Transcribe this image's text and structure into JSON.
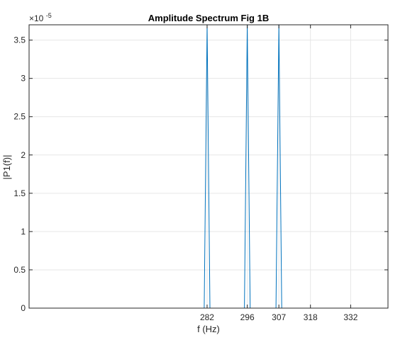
{
  "chart_data": {
    "type": "line",
    "title": "Amplitude Spectrum Fig 1B",
    "xlabel": "f (Hz)",
    "ylabel": "|P1(f)|",
    "exponent_label": "×10",
    "exponent_power": "-5",
    "xlim": [
      220,
      345
    ],
    "ylim": [
      0,
      3.7
    ],
    "x_ticks": [
      282,
      296,
      307,
      318,
      332
    ],
    "y_ticks": [
      0,
      0.5,
      1,
      1.5,
      2,
      2.5,
      3,
      3.5
    ],
    "y_tick_labels": [
      "0",
      "0.5",
      "1",
      "1.5",
      "2",
      "2.5",
      "3",
      "3.5"
    ],
    "grid": true,
    "series": [
      {
        "color": "#0072bd",
        "x": [
          220,
          281,
          282,
          283,
          295,
          296,
          297,
          306,
          307,
          308,
          345
        ],
        "values": [
          0,
          0,
          3.7,
          0,
          0,
          3.7,
          0,
          0,
          3.7,
          0,
          0
        ]
      }
    ]
  }
}
